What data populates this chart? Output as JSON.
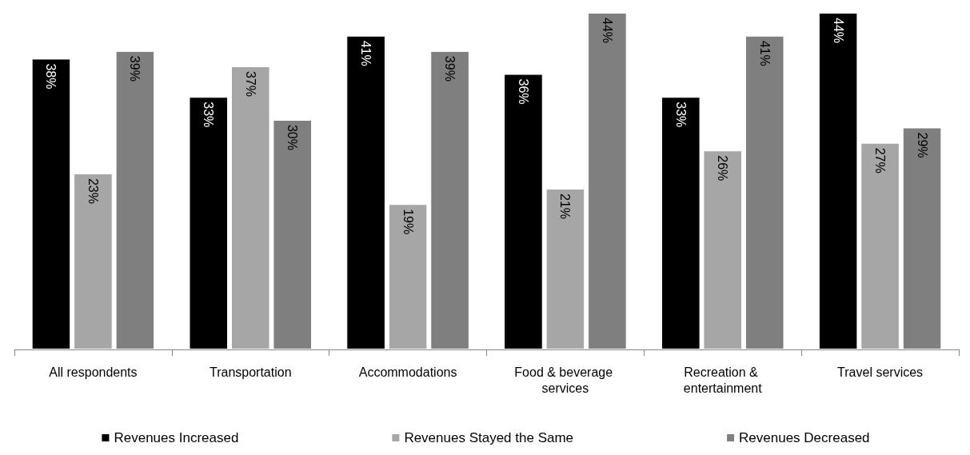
{
  "chart_data": {
    "type": "bar",
    "categories": [
      "All respondents",
      "Transportation",
      "Accommodations",
      "Food & beverage services",
      "Recreation & entertainment",
      "Travel services"
    ],
    "series": [
      {
        "name": "Revenues Increased",
        "color": "#000000",
        "values": [
          38,
          33,
          41,
          36,
          33,
          44
        ],
        "value_labels": [
          "38%",
          "33%",
          "41%",
          "36%",
          "33%",
          "44%"
        ]
      },
      {
        "name": "Revenues Stayed the Same",
        "color": "#a6a6a6",
        "values": [
          23,
          37,
          19,
          21,
          26,
          27
        ],
        "value_labels": [
          "23%",
          "37%",
          "19%",
          "21%",
          "26%",
          "27%"
        ]
      },
      {
        "name": "Revenues Decreased",
        "color": "#7f7f7f",
        "values": [
          39,
          30,
          39,
          44,
          41,
          29
        ],
        "value_labels": [
          "39%",
          "30%",
          "39%",
          "44%",
          "41%",
          "29%"
        ]
      }
    ],
    "legend": "bottom",
    "grid": false
  }
}
